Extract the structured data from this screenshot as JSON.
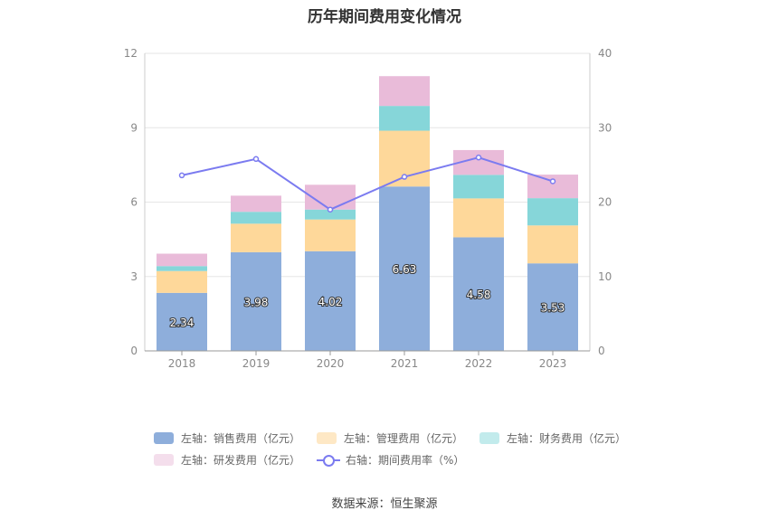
{
  "chart_data": {
    "type": "bar",
    "title": "历年期间费用变化情况",
    "categories": [
      "2018",
      "2019",
      "2020",
      "2021",
      "2022",
      "2023"
    ],
    "series": [
      {
        "name": "左轴：销售费用（亿元）",
        "axis": "left",
        "color": "#8eaedb",
        "values": [
          2.34,
          3.98,
          4.02,
          6.63,
          4.58,
          3.53
        ]
      },
      {
        "name": "左轴：管理费用（亿元）",
        "axis": "left",
        "color": "#fed89a",
        "values": [
          0.88,
          1.15,
          1.28,
          2.25,
          1.57,
          1.53
        ]
      },
      {
        "name": "左轴：财务费用（亿元）",
        "axis": "left",
        "color": "#86d6d9",
        "values": [
          0.2,
          0.48,
          0.4,
          1.0,
          0.95,
          1.1
        ]
      },
      {
        "name": "左轴：研发费用（亿元）",
        "axis": "left",
        "color": "#e9bbd9",
        "values": [
          0.5,
          0.65,
          1.0,
          1.2,
          1.0,
          0.95
        ]
      },
      {
        "name": "右轴：期间费用率（%）",
        "axis": "right",
        "type": "line",
        "color": "#7b7bf0",
        "values": [
          23.6,
          25.8,
          19.0,
          23.4,
          26.0,
          22.8
        ]
      }
    ],
    "data_labels": [
      "2.34",
      "3.98",
      "4.02",
      "6.63",
      "4.58",
      "3.53"
    ],
    "ylim_left": [
      0,
      12
    ],
    "yticks_left": [
      "0",
      "3",
      "6",
      "9",
      "12"
    ],
    "ylim_right": [
      0,
      40
    ],
    "yticks_right": [
      "0",
      "10",
      "20",
      "30",
      "40"
    ],
    "grid": true,
    "legend_position": "bottom"
  },
  "legend": {
    "sales": "左轴：销售费用（亿元）",
    "admin": "左轴：管理费用（亿元）",
    "finance": "左轴：财务费用（亿元）",
    "rnd": "左轴：研发费用（亿元）",
    "rate": "右轴：期间费用率（%）"
  },
  "source": "数据来源：恒生聚源"
}
